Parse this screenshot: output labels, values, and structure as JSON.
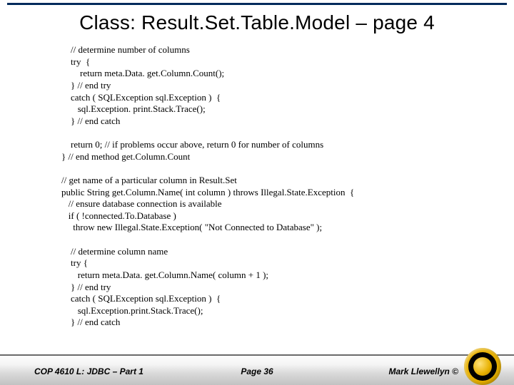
{
  "slide": {
    "title": "Class:  Result.Set.Table.Model – page 4",
    "code": "    // determine number of columns\n    try  {\n        return meta.Data. get.Column.Count();\n    } // end try\n    catch ( SQLException sql.Exception )  {\n       sql.Exception. print.Stack.Trace();\n    } // end catch\n\n    return 0; // if problems occur above, return 0 for number of columns\n} // end method get.Column.Count\n\n// get name of a particular column in Result.Set\npublic String get.Column.Name( int column ) throws Illegal.State.Exception  {\n   // ensure database connection is available\n   if ( !connected.To.Database )\n     throw new Illegal.State.Exception( \"Not Connected to Database\" );\n\n    // determine column name\n    try {\n       return meta.Data. get.Column.Name( column + 1 );\n    } // end try\n    catch ( SQLException sql.Exception )  {\n       sql.Exception.print.Stack.Trace();\n    } // end catch"
  },
  "footer": {
    "left": "COP 4610 L: JDBC – Part 1",
    "center": "Page 36",
    "right": "Mark Llewellyn ©"
  },
  "colors": {
    "rule": "#002a5c",
    "logo_gold": "#e7b000",
    "logo_black": "#000000",
    "background": "#ffffff"
  },
  "typography": {
    "title_font": "Arial",
    "title_size_pt": 21,
    "body_font": "Times New Roman",
    "body_size_pt": 10,
    "footer_font": "Arial",
    "footer_size_pt": 9,
    "footer_weight": "bold",
    "footer_style": "italic"
  }
}
